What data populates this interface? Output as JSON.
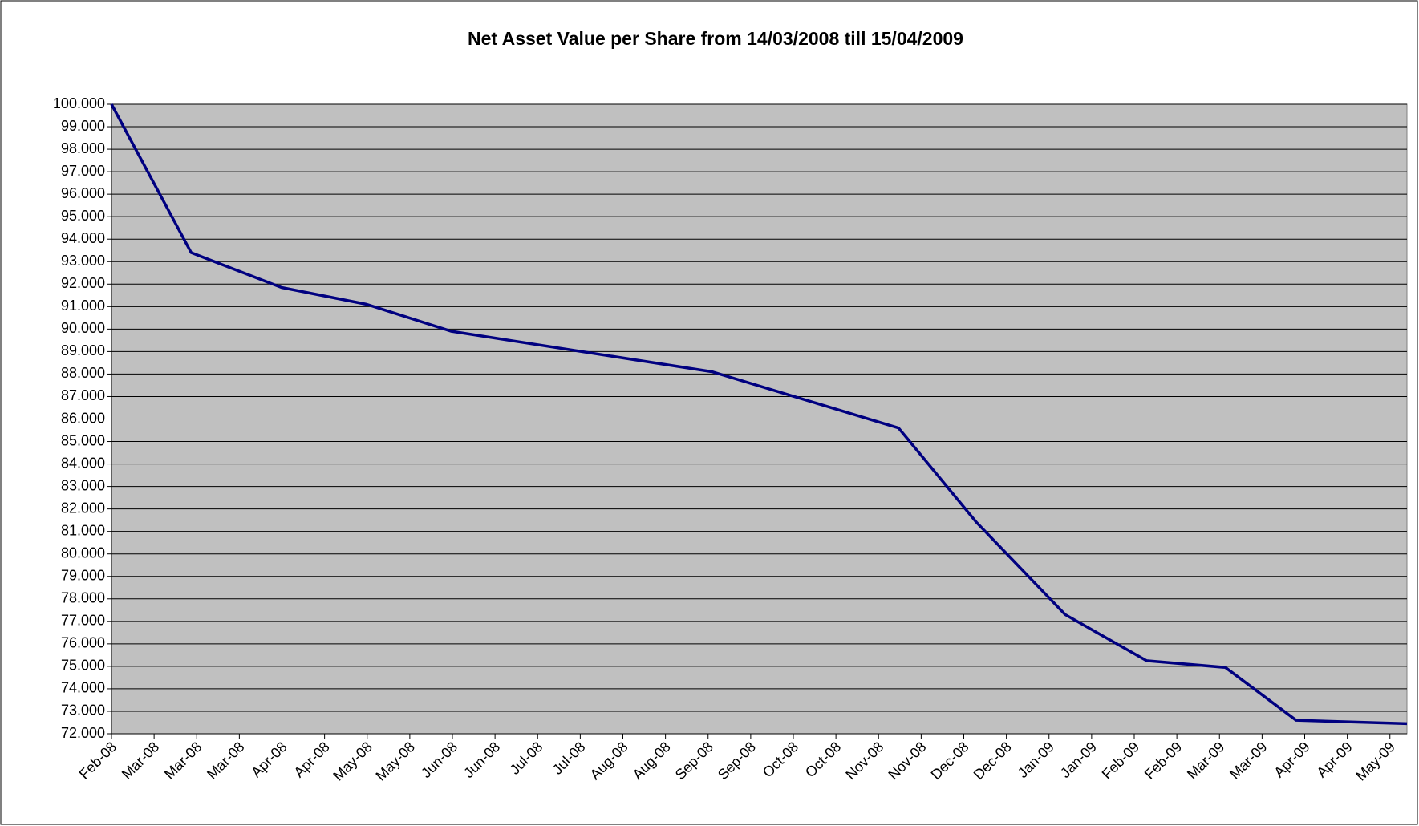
{
  "chart_data": {
    "type": "line",
    "title": "Net Asset Value per Share from 14/03/2008 till 15/04/2009",
    "series": [
      {
        "color": "#000080",
        "x": [
          0,
          1.87,
          3.99,
          5.99,
          7.98,
          14.1,
          18.47,
          20.3,
          22.38,
          24.29,
          26.14,
          27.8,
          30.4
        ],
        "values": [
          100,
          93.4,
          91.85,
          91.1,
          89.9,
          88.1,
          85.6,
          81.4,
          77.3,
          75.25,
          74.95,
          72.6,
          72.45
        ]
      }
    ],
    "xlim": [
      0,
      30.4
    ],
    "xticks": [
      {
        "value": 0,
        "label": "Feb-08"
      },
      {
        "value": 1,
        "label": "Mar-08"
      },
      {
        "value": 2,
        "label": "Mar-08"
      },
      {
        "value": 3,
        "label": "Mar-08"
      },
      {
        "value": 4,
        "label": "Apr-08"
      },
      {
        "value": 5,
        "label": "Apr-08"
      },
      {
        "value": 6,
        "label": "May-08"
      },
      {
        "value": 7,
        "label": "May-08"
      },
      {
        "value": 8,
        "label": "Jun-08"
      },
      {
        "value": 9,
        "label": "Jun-08"
      },
      {
        "value": 10,
        "label": "Jul-08"
      },
      {
        "value": 11,
        "label": "Jul-08"
      },
      {
        "value": 12,
        "label": "Aug-08"
      },
      {
        "value": 13,
        "label": "Aug-08"
      },
      {
        "value": 14,
        "label": "Sep-08"
      },
      {
        "value": 15,
        "label": "Sep-08"
      },
      {
        "value": 16,
        "label": "Oct-08"
      },
      {
        "value": 17,
        "label": "Oct-08"
      },
      {
        "value": 18,
        "label": "Nov-08"
      },
      {
        "value": 19,
        "label": "Nov-08"
      },
      {
        "value": 20,
        "label": "Dec-08"
      },
      {
        "value": 21,
        "label": "Dec-08"
      },
      {
        "value": 22,
        "label": "Jan-09"
      },
      {
        "value": 23,
        "label": "Jan-09"
      },
      {
        "value": 24,
        "label": "Feb-09"
      },
      {
        "value": 25,
        "label": "Feb-09"
      },
      {
        "value": 26,
        "label": "Mar-09"
      },
      {
        "value": 27,
        "label": "Mar-09"
      },
      {
        "value": 28,
        "label": "Apr-09"
      },
      {
        "value": 29,
        "label": "Apr-09"
      },
      {
        "value": 30,
        "label": "May-09"
      }
    ],
    "ylim": [
      72,
      100
    ],
    "yticks": [
      {
        "value": 72,
        "label": "72.000"
      },
      {
        "value": 73,
        "label": "73.000"
      },
      {
        "value": 74,
        "label": "74.000"
      },
      {
        "value": 75,
        "label": "75.000"
      },
      {
        "value": 76,
        "label": "76.000"
      },
      {
        "value": 77,
        "label": "77.000"
      },
      {
        "value": 78,
        "label": "78.000"
      },
      {
        "value": 79,
        "label": "79.000"
      },
      {
        "value": 80,
        "label": "80.000"
      },
      {
        "value": 81,
        "label": "81.000"
      },
      {
        "value": 82,
        "label": "82.000"
      },
      {
        "value": 83,
        "label": "83.000"
      },
      {
        "value": 84,
        "label": "84.000"
      },
      {
        "value": 85,
        "label": "85.000"
      },
      {
        "value": 86,
        "label": "86.000"
      },
      {
        "value": 87,
        "label": "87.000"
      },
      {
        "value": 88,
        "label": "88.000"
      },
      {
        "value": 89,
        "label": "89.000"
      },
      {
        "value": 90,
        "label": "90.000"
      },
      {
        "value": 91,
        "label": "91.000"
      },
      {
        "value": 92,
        "label": "92.000"
      },
      {
        "value": 93,
        "label": "93.000"
      },
      {
        "value": 94,
        "label": "94.000"
      },
      {
        "value": 95,
        "label": "95.000"
      },
      {
        "value": 96,
        "label": "96.000"
      },
      {
        "value": 97,
        "label": "97.000"
      },
      {
        "value": 98,
        "label": "98.000"
      },
      {
        "value": 99,
        "label": "99.000"
      },
      {
        "value": 100,
        "label": "100.000"
      }
    ],
    "grid": true,
    "plot_background": "#c0c0c0"
  }
}
